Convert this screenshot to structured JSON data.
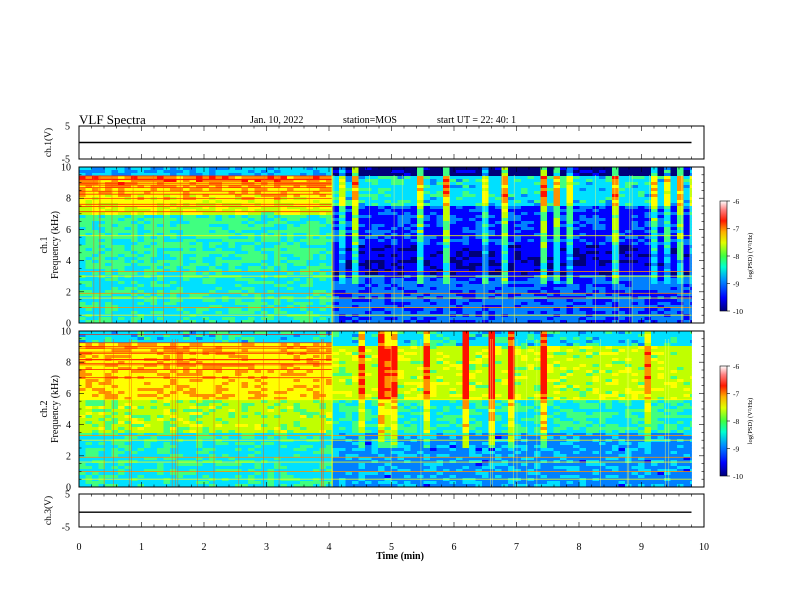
{
  "header": {
    "title": "VLF Spectra",
    "date": "Jan. 10, 2022",
    "station": "station=MOS",
    "start": "start UT =  22: 40: 1"
  },
  "chart_data": [
    {
      "type": "line",
      "panel": "ch1-waveform",
      "ylabel": "ch.1(V)",
      "ylim": [
        -5,
        5
      ],
      "yticks": [
        "5",
        "-5"
      ],
      "series": [
        {
          "x": [
            0,
            9.8
          ],
          "values": [
            0,
            0
          ]
        }
      ]
    },
    {
      "type": "heatmap",
      "panel": "ch1-spectrogram",
      "ylabel_line1": "ch.1",
      "ylabel_line2": "Frequency (kHz)",
      "ylim": [
        0,
        10
      ],
      "yticks": [
        "0",
        "2",
        "4",
        "6",
        "8",
        "10"
      ],
      "xlim": [
        0,
        10
      ],
      "colorbar": {
        "label": "log(PSD) (V²/Hz)",
        "range": [
          -10,
          -6
        ],
        "ticks": [
          "-6",
          "-7",
          "-8",
          "-9",
          "-10"
        ]
      }
    },
    {
      "type": "heatmap",
      "panel": "ch2-spectrogram",
      "ylabel_line1": "ch.2",
      "ylabel_line2": "Frequency (kHz)",
      "ylim": [
        0,
        10
      ],
      "yticks": [
        "0",
        "2",
        "4",
        "6",
        "8",
        "10"
      ],
      "xlim": [
        0,
        10
      ],
      "colorbar": {
        "label": "log(PSD) (V²/Hz)",
        "range": [
          -10,
          -6
        ],
        "ticks": [
          "-6",
          "-7",
          "-8",
          "-9",
          "-10"
        ]
      }
    },
    {
      "type": "line",
      "panel": "ch3-waveform",
      "ylabel": "ch.3(V)",
      "ylim": [
        -5,
        5
      ],
      "yticks": [
        "5",
        "-5"
      ],
      "series": [
        {
          "x": [
            0,
            9.8
          ],
          "values": [
            -0.5,
            -0.5
          ]
        }
      ]
    }
  ],
  "xaxis": {
    "label": "Time (min)",
    "ticks": [
      "0",
      "1",
      "2",
      "3",
      "4",
      "5",
      "6",
      "7",
      "8",
      "9",
      "10"
    ],
    "range": [
      0,
      10
    ],
    "data_end": 9.8,
    "transition": 4.05
  },
  "colors": {
    "colormap": [
      "#00007a",
      "#0000ff",
      "#0080ff",
      "#00e0ff",
      "#40ff80",
      "#c0ff00",
      "#ffff00",
      "#ff9000",
      "#ff1000",
      "#ffffff"
    ]
  }
}
